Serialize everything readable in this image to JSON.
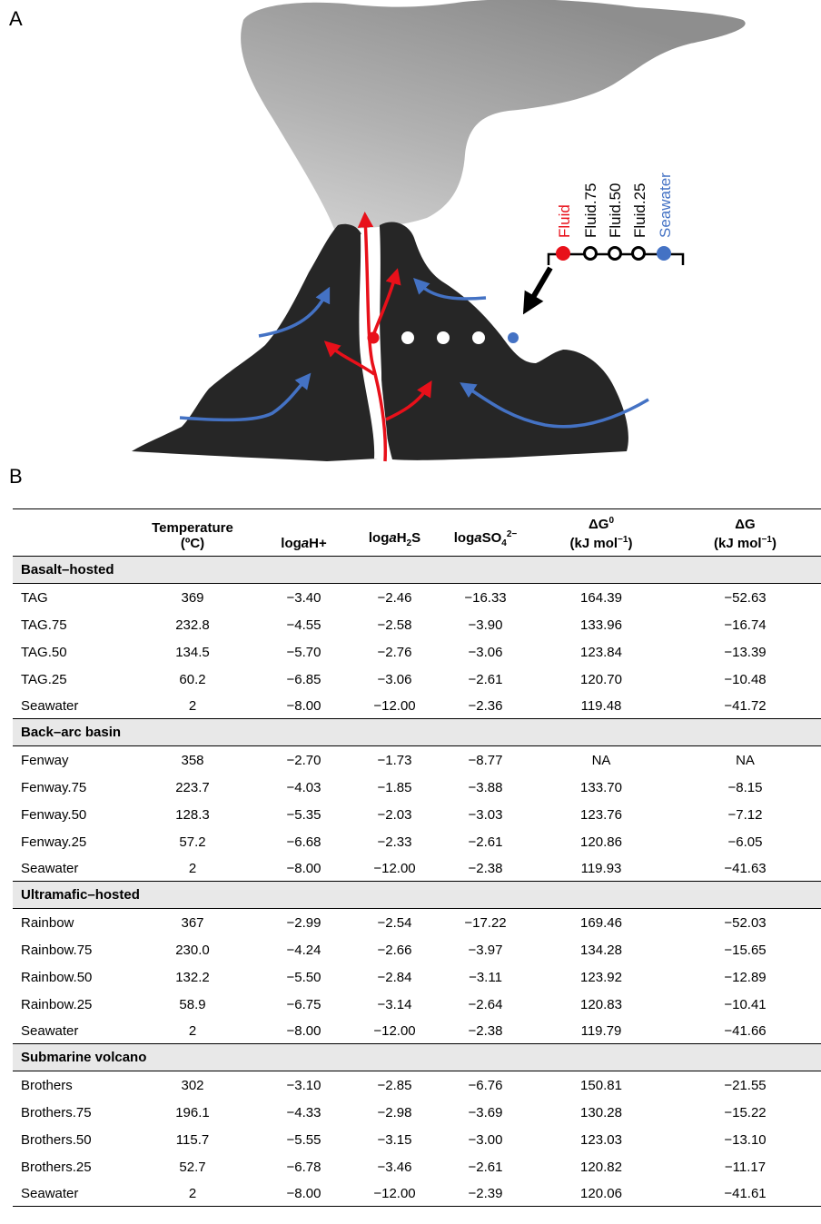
{
  "panels": {
    "a": "A",
    "b": "B"
  },
  "legend": {
    "items": [
      {
        "label": "Fluid",
        "color": "#e8101a",
        "filled": true
      },
      {
        "label": "Fluid.75",
        "color": "#000000",
        "filled": false
      },
      {
        "label": "Fluid.50",
        "color": "#000000",
        "filled": false
      },
      {
        "label": "Fluid.25",
        "color": "#000000",
        "filled": false
      },
      {
        "label": "Seawater",
        "color": "#4472c4",
        "filled": true
      }
    ]
  },
  "colors": {
    "rock": "#262626",
    "plume": "#a6a6a6",
    "fluid": "#e8101a",
    "seawater": "#4472c4"
  },
  "table": {
    "headers": [
      {
        "line1": "",
        "line2": ""
      },
      {
        "line1": "Temperature",
        "line2": "(ºC)"
      },
      {
        "line1": "",
        "line2": "loga",
        "sub": "",
        "sup": "",
        "after": "H+"
      },
      {
        "line1": "",
        "line2": "loga",
        "after": "H",
        "sub": "2",
        "tail": "S"
      },
      {
        "line1": "",
        "line2": "loga",
        "after": "SO",
        "sub": "4",
        "sup": "2−"
      },
      {
        "line1": "ΔG",
        "line1sup": "0",
        "line2": "(kJ mol",
        "line2sup": "−1",
        "line2end": ")"
      },
      {
        "line1": "ΔG",
        "line2": "(kJ mol",
        "line2sup": "−1",
        "line2end": ")"
      }
    ],
    "groups": [
      {
        "title": "Basalt–hosted",
        "rows": [
          [
            "TAG",
            "369",
            "−3.40",
            "−2.46",
            "−16.33",
            "164.39",
            "−52.63"
          ],
          [
            "TAG.75",
            "232.8",
            "−4.55",
            "−2.58",
            "−3.90",
            "133.96",
            "−16.74"
          ],
          [
            "TAG.50",
            "134.5",
            "−5.70",
            "−2.76",
            "−3.06",
            "123.84",
            "−13.39"
          ],
          [
            "TAG.25",
            "60.2",
            "−6.85",
            "−3.06",
            "−2.61",
            "120.70",
            "−10.48"
          ],
          [
            "Seawater",
            "2",
            "−8.00",
            "−12.00",
            "−2.36",
            "119.48",
            "−41.72"
          ]
        ]
      },
      {
        "title": "Back–arc basin",
        "rows": [
          [
            "Fenway",
            "358",
            "−2.70",
            "−1.73",
            "−8.77",
            "NA",
            "NA"
          ],
          [
            "Fenway.75",
            "223.7",
            "−4.03",
            "−1.85",
            "−3.88",
            "133.70",
            "−8.15"
          ],
          [
            "Fenway.50",
            "128.3",
            "−5.35",
            "−2.03",
            "−3.03",
            "123.76",
            "−7.12"
          ],
          [
            "Fenway.25",
            "57.2",
            "−6.68",
            "−2.33",
            "−2.61",
            "120.86",
            "−6.05"
          ],
          [
            "Seawater",
            "2",
            "−8.00",
            "−12.00",
            "−2.38",
            "119.93",
            "−41.63"
          ]
        ]
      },
      {
        "title": "Ultramafic–hosted",
        "rows": [
          [
            "Rainbow",
            "367",
            "−2.99",
            "−2.54",
            "−17.22",
            "169.46",
            "−52.03"
          ],
          [
            "Rainbow.75",
            "230.0",
            "−4.24",
            "−2.66",
            "−3.97",
            "134.28",
            "−15.65"
          ],
          [
            "Rainbow.50",
            "132.2",
            "−5.50",
            "−2.84",
            "−3.11",
            "123.92",
            "−12.89"
          ],
          [
            "Rainbow.25",
            "58.9",
            "−6.75",
            "−3.14",
            "−2.64",
            "120.83",
            "−10.41"
          ],
          [
            "Seawater",
            "2",
            "−8.00",
            "−12.00",
            "−2.38",
            "119.79",
            "−41.66"
          ]
        ]
      },
      {
        "title": "Submarine volcano",
        "rows": [
          [
            "Brothers",
            "302",
            "−3.10",
            "−2.85",
            "−6.76",
            "150.81",
            "−21.55"
          ],
          [
            "Brothers.75",
            "196.1",
            "−4.33",
            "−2.98",
            "−3.69",
            "130.28",
            "−15.22"
          ],
          [
            "Brothers.50",
            "115.7",
            "−5.55",
            "−3.15",
            "−3.00",
            "123.03",
            "−13.10"
          ],
          [
            "Brothers.25",
            "52.7",
            "−6.78",
            "−3.46",
            "−2.61",
            "120.82",
            "−11.17"
          ],
          [
            "Seawater",
            "2",
            "−8.00",
            "−12.00",
            "−2.39",
            "120.06",
            "−41.61"
          ]
        ]
      }
    ]
  }
}
